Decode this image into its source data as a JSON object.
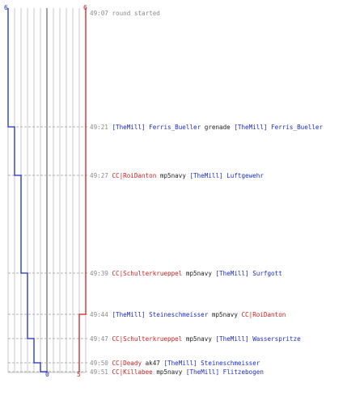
{
  "counts": {
    "blue_start": "6",
    "red_start": "6",
    "blue_end": "0",
    "red_end": "5"
  },
  "colors": {
    "blue": "#1f2bc4",
    "red": "#cc2222",
    "grid": "#c8c8c8",
    "text_gray": "#8a8a8a"
  },
  "events": [
    {
      "time": "49:07",
      "message": "round started"
    },
    {
      "time": "49:21",
      "killer": "[TheMill] Ferris_Bueller",
      "killer_team": "blue",
      "weapon": "grenade",
      "victim": "[TheMill] Ferris_Bueller",
      "victim_team": "blue"
    },
    {
      "time": "49:27",
      "killer": "CC|RoiDanton",
      "killer_team": "red",
      "weapon": "mp5navy",
      "victim": "[TheMill] Luftgewehr",
      "victim_team": "blue"
    },
    {
      "time": "49:39",
      "killer": "CC|Schulterkrueppel",
      "killer_team": "red",
      "weapon": "mp5navy",
      "victim": "[TheMill] Surfgott",
      "victim_team": "blue"
    },
    {
      "time": "49:44",
      "killer": "[TheMill] Steineschmeisser",
      "killer_team": "blue",
      "weapon": "mp5navy",
      "victim": "CC|RoiDanton",
      "victim_team": "red"
    },
    {
      "time": "49:47",
      "killer": "CC|Schulterkrueppel",
      "killer_team": "red",
      "weapon": "mp5navy",
      "victim": "[TheMill] Wasserspritze",
      "victim_team": "blue"
    },
    {
      "time": "49:50",
      "killer": "CC|Deady",
      "killer_team": "red",
      "weapon": "ak47",
      "victim": "[TheMill] Steineschmeisser",
      "victim_team": "blue"
    },
    {
      "time": "49:51",
      "killer": "CC|Killabee",
      "killer_team": "red",
      "weapon": "mp5navy",
      "victim": "[TheMill] Flitzebogen",
      "victim_team": "blue"
    }
  ],
  "chart_data": {
    "type": "line",
    "x_label": "",
    "y_label": "",
    "x": [
      "49:07",
      "49:21",
      "49:27",
      "49:39",
      "49:44",
      "49:47",
      "49:50",
      "49:51"
    ],
    "series": [
      {
        "values": [
          6,
          5,
          4,
          3,
          3,
          2,
          1,
          0
        ]
      },
      {
        "values": [
          6,
          6,
          6,
          6,
          5,
          5,
          5,
          5
        ]
      }
    ],
    "xlim": [
      0,
      6
    ],
    "grid": true
  }
}
